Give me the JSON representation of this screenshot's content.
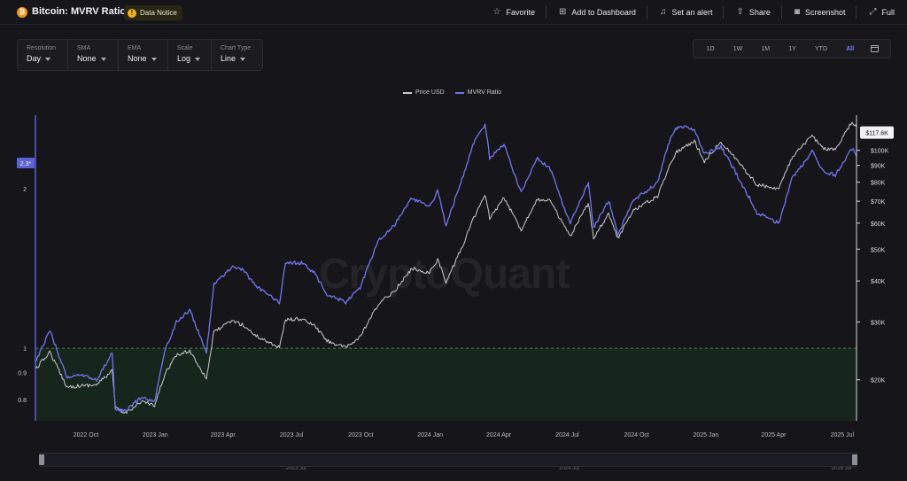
{
  "header": {
    "title": "Bitcoin: MVRV Ratio",
    "notice": "Data Notice",
    "actions": {
      "favorite": "Favorite",
      "dashboard": "Add to Dashboard",
      "alert": "Set an alert",
      "share": "Share",
      "screenshot": "Screenshot",
      "full": "Full"
    }
  },
  "controls": [
    {
      "label": "Resolution",
      "value": "Day"
    },
    {
      "label": "SMA",
      "value": "None"
    },
    {
      "label": "EMA",
      "value": "None"
    },
    {
      "label": "Scale",
      "value": "Log"
    },
    {
      "label": "Chart Type",
      "value": "Line"
    }
  ],
  "ranges": {
    "items": [
      "1D",
      "1W",
      "1M",
      "1Y",
      "YTD",
      "All"
    ],
    "active": "All"
  },
  "watermark": "CryptoQuant",
  "colors": {
    "price": "#c9c9cf",
    "mvrv": "#7275ee",
    "threshold": "#3a8c3a",
    "zone": "#17261d"
  },
  "chart_data": {
    "type": "line",
    "title": "Bitcoin: MVRV Ratio",
    "x_range": [
      "2022-07-26",
      "2025-07-20"
    ],
    "x_ticks": [
      {
        "date": "2022-10-01",
        "label": "2022 Oct"
      },
      {
        "date": "2023-01-01",
        "label": "2023 Jan"
      },
      {
        "date": "2023-04-01",
        "label": "2023 Apr"
      },
      {
        "date": "2023-07-01",
        "label": "2023 Jul"
      },
      {
        "date": "2023-10-01",
        "label": "2023 Oct"
      },
      {
        "date": "2024-01-01",
        "label": "2024 Jan"
      },
      {
        "date": "2024-04-01",
        "label": "2024 Apr"
      },
      {
        "date": "2024-07-01",
        "label": "2024 Jul"
      },
      {
        "date": "2024-10-01",
        "label": "2024 Oct"
      },
      {
        "date": "2025-01-01",
        "label": "2025 Jan"
      },
      {
        "date": "2025-04-01",
        "label": "2025 Apr"
      },
      {
        "date": "2025-07-01",
        "label": "2025 Jul"
      }
    ],
    "left_axis": {
      "scale": "log",
      "range": [
        0.73,
        2.75
      ],
      "ticks": [
        0.8,
        0.9,
        1,
        2
      ],
      "labels": [
        "0.8",
        "0.9",
        "1",
        "2"
      ]
    },
    "right_axis": {
      "scale": "log",
      "unit": "USD",
      "range": [
        15000,
        128000
      ],
      "ticks": [
        20000,
        30000,
        40000,
        50000,
        60000,
        70000,
        80000,
        90000,
        100000
      ],
      "labels": [
        "$20K",
        "$30K",
        "$40K",
        "$50K",
        "$60K",
        "$70K",
        "$80K",
        "$90K",
        "$100K"
      ]
    },
    "threshold": {
      "value": 1,
      "axis": "left",
      "zone": "below"
    },
    "current_labels": {
      "mvrv": "2.3*",
      "price": "$117.6K"
    },
    "series": [
      {
        "name": "Price USD",
        "axis": "right",
        "points": [
          [
            "2022-07-26",
            21500
          ],
          [
            "2022-08-14",
            24300
          ],
          [
            "2022-09-06",
            19000
          ],
          [
            "2022-09-25",
            19200
          ],
          [
            "2022-10-15",
            19300
          ],
          [
            "2022-11-05",
            21300
          ],
          [
            "2022-11-09",
            16500
          ],
          [
            "2022-11-21",
            15800
          ],
          [
            "2022-12-15",
            17200
          ],
          [
            "2022-12-31",
            16600
          ],
          [
            "2023-01-14",
            20900
          ],
          [
            "2023-01-29",
            23700
          ],
          [
            "2023-02-16",
            24500
          ],
          [
            "2023-03-10",
            20200
          ],
          [
            "2023-03-20",
            28000
          ],
          [
            "2023-04-14",
            30300
          ],
          [
            "2023-04-28",
            29300
          ],
          [
            "2023-05-15",
            27200
          ],
          [
            "2023-06-15",
            25100
          ],
          [
            "2023-06-23",
            30500
          ],
          [
            "2023-07-14",
            30600
          ],
          [
            "2023-07-31",
            29300
          ],
          [
            "2023-08-17",
            26300
          ],
          [
            "2023-09-11",
            25000
          ],
          [
            "2023-09-30",
            27000
          ],
          [
            "2023-10-24",
            33900
          ],
          [
            "2023-11-15",
            37400
          ],
          [
            "2023-12-08",
            43700
          ],
          [
            "2023-12-31",
            42300
          ],
          [
            "2024-01-11",
            46600
          ],
          [
            "2024-01-22",
            39500
          ],
          [
            "2024-02-14",
            51800
          ],
          [
            "2024-02-28",
            62500
          ],
          [
            "2024-03-14",
            73000
          ],
          [
            "2024-03-20",
            62000
          ],
          [
            "2024-04-08",
            71600
          ],
          [
            "2024-05-01",
            57300
          ],
          [
            "2024-05-21",
            70500
          ],
          [
            "2024-06-07",
            70800
          ],
          [
            "2024-07-05",
            54500
          ],
          [
            "2024-07-29",
            69000
          ],
          [
            "2024-08-05",
            54300
          ],
          [
            "2024-08-25",
            64200
          ],
          [
            "2024-09-06",
            53900
          ],
          [
            "2024-09-27",
            65800
          ],
          [
            "2024-10-29",
            72400
          ],
          [
            "2024-11-12",
            88000
          ],
          [
            "2024-11-22",
            98500
          ],
          [
            "2024-12-05",
            103000
          ],
          [
            "2024-12-17",
            106500
          ],
          [
            "2024-12-30",
            92500
          ],
          [
            "2025-01-21",
            106500
          ],
          [
            "2025-02-05",
            97000
          ],
          [
            "2025-02-28",
            84000
          ],
          [
            "2025-03-10",
            78500
          ],
          [
            "2025-04-08",
            76500
          ],
          [
            "2025-04-25",
            94500
          ],
          [
            "2025-05-22",
            111000
          ],
          [
            "2025-06-05",
            101500
          ],
          [
            "2025-06-22",
            100500
          ],
          [
            "2025-07-14",
            122000
          ],
          [
            "2025-07-20",
            117600
          ]
        ]
      },
      {
        "name": "MVRV Ratio",
        "axis": "left",
        "points": [
          [
            "2022-07-26",
            0.94
          ],
          [
            "2022-08-14",
            1.08
          ],
          [
            "2022-09-06",
            0.88
          ],
          [
            "2022-09-25",
            0.89
          ],
          [
            "2022-10-15",
            0.87
          ],
          [
            "2022-11-05",
            0.98
          ],
          [
            "2022-11-09",
            0.77
          ],
          [
            "2022-11-21",
            0.76
          ],
          [
            "2022-12-15",
            0.81
          ],
          [
            "2022-12-31",
            0.79
          ],
          [
            "2023-01-14",
            0.99
          ],
          [
            "2023-01-29",
            1.12
          ],
          [
            "2023-02-16",
            1.18
          ],
          [
            "2023-03-10",
            0.98
          ],
          [
            "2023-03-20",
            1.32
          ],
          [
            "2023-04-14",
            1.43
          ],
          [
            "2023-04-28",
            1.4
          ],
          [
            "2023-05-15",
            1.31
          ],
          [
            "2023-06-15",
            1.22
          ],
          [
            "2023-06-23",
            1.45
          ],
          [
            "2023-07-14",
            1.45
          ],
          [
            "2023-07-31",
            1.39
          ],
          [
            "2023-08-17",
            1.26
          ],
          [
            "2023-09-11",
            1.22
          ],
          [
            "2023-09-30",
            1.3
          ],
          [
            "2023-10-24",
            1.59
          ],
          [
            "2023-11-15",
            1.71
          ],
          [
            "2023-12-08",
            1.92
          ],
          [
            "2023-12-31",
            1.84
          ],
          [
            "2024-01-11",
            1.98
          ],
          [
            "2024-01-22",
            1.7
          ],
          [
            "2024-02-14",
            2.12
          ],
          [
            "2024-02-28",
            2.44
          ],
          [
            "2024-03-14",
            2.65
          ],
          [
            "2024-03-20",
            2.28
          ],
          [
            "2024-04-08",
            2.42
          ],
          [
            "2024-05-01",
            1.96
          ],
          [
            "2024-05-21",
            2.28
          ],
          [
            "2024-06-07",
            2.2
          ],
          [
            "2024-07-05",
            1.72
          ],
          [
            "2024-07-29",
            2.05
          ],
          [
            "2024-08-05",
            1.69
          ],
          [
            "2024-08-25",
            1.9
          ],
          [
            "2024-09-06",
            1.64
          ],
          [
            "2024-09-27",
            1.9
          ],
          [
            "2024-10-29",
            2.05
          ],
          [
            "2024-11-12",
            2.42
          ],
          [
            "2024-11-22",
            2.6
          ],
          [
            "2024-12-05",
            2.62
          ],
          [
            "2024-12-17",
            2.58
          ],
          [
            "2024-12-30",
            2.32
          ],
          [
            "2025-01-21",
            2.4
          ],
          [
            "2025-02-05",
            2.2
          ],
          [
            "2025-02-28",
            1.92
          ],
          [
            "2025-03-10",
            1.8
          ],
          [
            "2025-04-08",
            1.72
          ],
          [
            "2025-04-25",
            2.08
          ],
          [
            "2025-05-22",
            2.35
          ],
          [
            "2025-06-05",
            2.16
          ],
          [
            "2025-06-22",
            2.12
          ],
          [
            "2025-07-14",
            2.38
          ],
          [
            "2025-07-20",
            2.3
          ]
        ]
      }
    ],
    "navigator": {
      "labels": [
        "2023 Jul",
        "2024 Jul",
        "2025 Jul"
      ]
    }
  }
}
